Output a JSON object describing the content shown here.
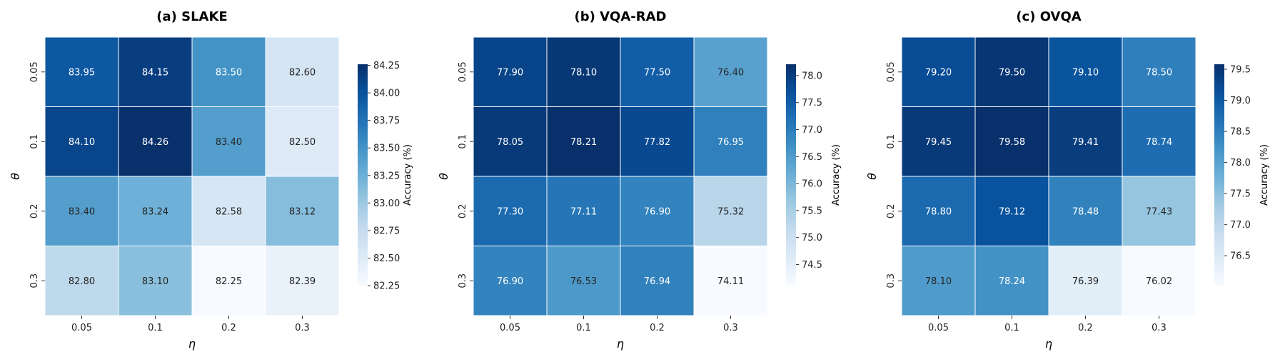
{
  "chart_data": [
    {
      "type": "heatmap",
      "title": "(a) SLAKE",
      "xlabel": "η",
      "ylabel": "θ",
      "x_categories": [
        "0.05",
        "0.1",
        "0.2",
        "0.3"
      ],
      "y_categories": [
        "0.05",
        "0.1",
        "0.2",
        "0.3"
      ],
      "values": [
        [
          83.95,
          84.15,
          83.5,
          82.6
        ],
        [
          84.1,
          84.26,
          83.4,
          82.5
        ],
        [
          83.4,
          83.24,
          82.58,
          83.12
        ],
        [
          82.8,
          83.1,
          82.25,
          82.39
        ]
      ],
      "cell_labels": [
        [
          "83.95",
          "84.15",
          "83.50",
          "82.60"
        ],
        [
          "84.10",
          "84.26",
          "83.40",
          "82.50"
        ],
        [
          "83.40",
          "83.24",
          "82.58",
          "83.12"
        ],
        [
          "82.80",
          "83.10",
          "82.25",
          "82.39"
        ]
      ],
      "colorbar": {
        "label": "Accuracy (%)",
        "min": 82.25,
        "max": 84.26,
        "ticks": [
          82.25,
          82.5,
          82.75,
          83.0,
          83.25,
          83.5,
          83.75,
          84.0,
          84.25
        ],
        "tick_labels": [
          "82.25",
          "82.50",
          "82.75",
          "83.00",
          "83.25",
          "83.50",
          "83.75",
          "84.00",
          "84.25"
        ]
      }
    },
    {
      "type": "heatmap",
      "title": "(b) VQA-RAD",
      "xlabel": "η",
      "ylabel": "θ",
      "x_categories": [
        "0.05",
        "0.1",
        "0.2",
        "0.3"
      ],
      "y_categories": [
        "0.05",
        "0.1",
        "0.2",
        "0.3"
      ],
      "values": [
        [
          77.9,
          78.1,
          77.5,
          76.4
        ],
        [
          78.05,
          78.21,
          77.82,
          76.95
        ],
        [
          77.3,
          77.11,
          76.9,
          75.32
        ],
        [
          76.9,
          76.53,
          76.94,
          74.11
        ]
      ],
      "cell_labels": [
        [
          "77.90",
          "78.10",
          "77.50",
          "76.40"
        ],
        [
          "78.05",
          "78.21",
          "77.82",
          "76.95"
        ],
        [
          "77.30",
          "77.11",
          "76.90",
          "75.32"
        ],
        [
          "76.90",
          "76.53",
          "76.94",
          "74.11"
        ]
      ],
      "colorbar": {
        "label": "Accuracy (%)",
        "min": 74.11,
        "max": 78.21,
        "ticks": [
          74.5,
          75.0,
          75.5,
          76.0,
          76.5,
          77.0,
          77.5,
          78.0
        ],
        "tick_labels": [
          "74.5",
          "75.0",
          "75.5",
          "76.0",
          "76.5",
          "77.0",
          "77.5",
          "78.0"
        ]
      }
    },
    {
      "type": "heatmap",
      "title": "(c) OVQA",
      "xlabel": "η",
      "ylabel": "θ",
      "x_categories": [
        "0.05",
        "0.1",
        "0.2",
        "0.3"
      ],
      "y_categories": [
        "0.05",
        "0.1",
        "0.2",
        "0.3"
      ],
      "values": [
        [
          79.2,
          79.5,
          79.1,
          78.5
        ],
        [
          79.45,
          79.58,
          79.41,
          78.74
        ],
        [
          78.8,
          79.12,
          78.48,
          77.43
        ],
        [
          78.1,
          78.24,
          76.39,
          76.02
        ]
      ],
      "cell_labels": [
        [
          "79.20",
          "79.50",
          "79.10",
          "78.50"
        ],
        [
          "79.45",
          "79.58",
          "79.41",
          "78.74"
        ],
        [
          "78.80",
          "79.12",
          "78.48",
          "77.43"
        ],
        [
          "78.10",
          "78.24",
          "76.39",
          "76.02"
        ]
      ],
      "colorbar": {
        "label": "Accuracy (%)",
        "min": 76.02,
        "max": 79.58,
        "ticks": [
          76.5,
          77.0,
          77.5,
          78.0,
          78.5,
          79.0,
          79.5
        ],
        "tick_labels": [
          "76.5",
          "77.0",
          "77.5",
          "78.0",
          "78.5",
          "79.0",
          "79.5"
        ]
      }
    }
  ],
  "colormap": {
    "name": "Blues",
    "stops": [
      "#f7fbff",
      "#deebf7",
      "#c6dbef",
      "#9ecae1",
      "#6baed6",
      "#4292c6",
      "#2171b5",
      "#08519c",
      "#08306b"
    ]
  }
}
